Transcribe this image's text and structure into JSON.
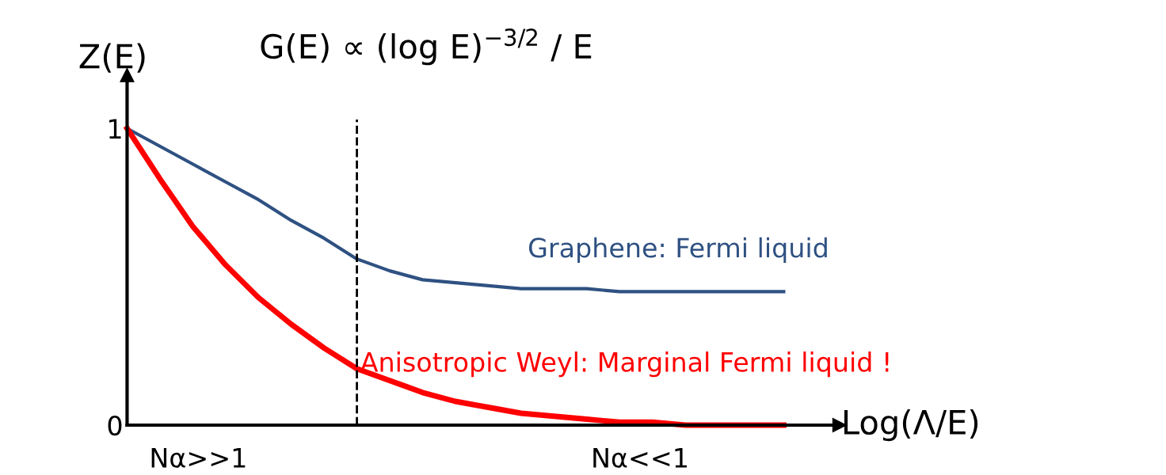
{
  "chart_data": {
    "type": "line",
    "xlabel": "Log(Λ/E)",
    "ylabel": "Z(E)",
    "categories": [
      null,
      null,
      null,
      null,
      null,
      null,
      null,
      null,
      null,
      null,
      null,
      null,
      null,
      null,
      null,
      null,
      null,
      null,
      null,
      null,
      null
    ],
    "series": [
      {
        "name": "Graphene: Fermi liquid",
        "color": "#2f5182",
        "values": [
          1.0,
          0.94,
          0.88,
          0.82,
          0.76,
          0.69,
          0.63,
          0.56,
          0.52,
          0.49,
          0.48,
          0.47,
          0.46,
          0.46,
          0.46,
          0.45,
          0.45,
          0.45,
          0.45,
          0.45,
          0.45
        ]
      },
      {
        "name": "Anisotropic Weyl: Marginal Fermi liquid !",
        "color": "#ff0000",
        "values": [
          1.0,
          0.83,
          0.67,
          0.54,
          0.43,
          0.34,
          0.26,
          0.19,
          0.15,
          0.11,
          0.08,
          0.06,
          0.04,
          0.03,
          0.02,
          0.01,
          0.01,
          0,
          0,
          0,
          0
        ]
      }
    ],
    "ylim": [
      0,
      1.18
    ],
    "yticks": [
      0,
      1
    ],
    "tick_labels": "y",
    "grid": false,
    "marker": "none",
    "line_style": "solid",
    "annotations": [
      "G(E) ∝ (log E)$^{−3/2}$ / E",
      "Nα>>1",
      "Nα<<1"
    ]
  }
}
